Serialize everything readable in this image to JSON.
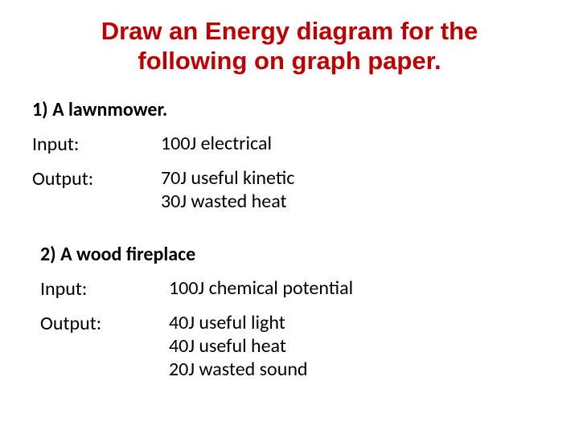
{
  "title_color": "#c00000",
  "title_line1": "Draw an Energy diagram for the",
  "title_line2": "following on graph paper.",
  "example1": {
    "header": "1) A lawnmower.",
    "input_label": "Input:",
    "input_value": "100J electrical",
    "output_label": "Output:",
    "output_line1": "70J useful kinetic",
    "output_line2": "30J wasted heat"
  },
  "example2": {
    "header": "2) A wood fireplace",
    "input_label": "Input:",
    "input_value": "100J chemical potential",
    "output_label": "Output:",
    "output_line1": "40J useful light",
    "output_line2": "40J useful heat",
    "output_line3": "20J wasted sound"
  }
}
